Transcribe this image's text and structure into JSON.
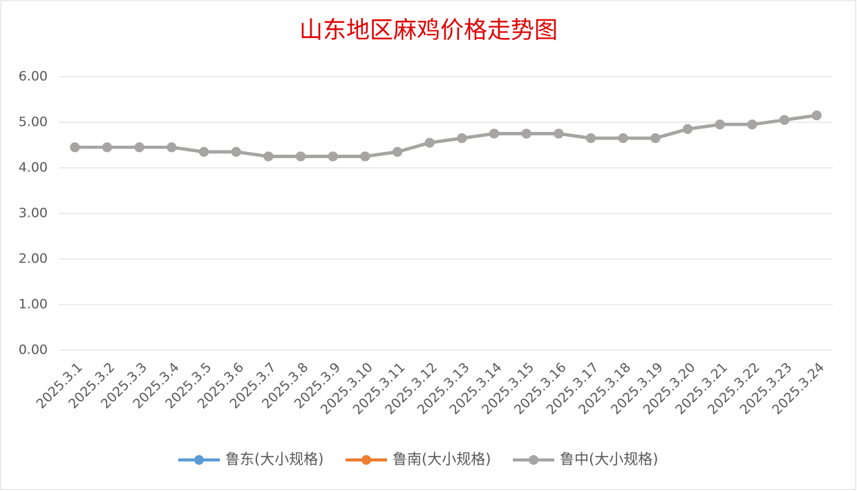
{
  "chart_data": {
    "type": "line",
    "title": "山东地区麻鸡价格走势图",
    "categories": [
      "2025.3.1",
      "2025.3.2",
      "2025.3.3",
      "2025.3.4",
      "2025.3.5",
      "2025.3.6",
      "2025.3.7",
      "2025.3.8",
      "2025.3.9",
      "2025.3.10",
      "2025.3.11",
      "2025.3.12",
      "2025.3.13",
      "2025.3.14",
      "2025.3.15",
      "2025.3.16",
      "2025.3.17",
      "2025.3.18",
      "2025.3.19",
      "2025.3.20",
      "2025.3.21",
      "2025.3.22",
      "2025.3.23",
      "2025.3.24"
    ],
    "series": [
      {
        "name": "鲁东(大小规格)",
        "color": "#5b9bd5",
        "values": [
          4.45,
          4.45,
          4.45,
          4.45,
          4.35,
          4.35,
          4.25,
          4.25,
          4.25,
          4.25,
          4.35,
          4.55,
          4.65,
          4.75,
          4.75,
          4.75,
          4.65,
          4.65,
          4.65,
          4.85,
          4.95,
          4.95,
          5.05,
          5.15
        ]
      },
      {
        "name": "鲁南(大小规格)",
        "color": "#ed7d31",
        "values": [
          4.45,
          4.45,
          4.45,
          4.45,
          4.35,
          4.35,
          4.25,
          4.25,
          4.25,
          4.25,
          4.35,
          4.55,
          4.65,
          4.75,
          4.75,
          4.75,
          4.65,
          4.65,
          4.65,
          4.85,
          4.95,
          4.95,
          5.05,
          5.15
        ]
      },
      {
        "name": "鲁中(大小规格)",
        "color": "#a5a5a5",
        "values": [
          4.45,
          4.45,
          4.45,
          4.45,
          4.35,
          4.35,
          4.25,
          4.25,
          4.25,
          4.25,
          4.35,
          4.55,
          4.65,
          4.75,
          4.75,
          4.75,
          4.65,
          4.65,
          4.65,
          4.85,
          4.95,
          4.95,
          5.05,
          5.15
        ]
      }
    ],
    "ylim": [
      0,
      6
    ],
    "yticks": [
      {
        "value": 0,
        "label": "0.00"
      },
      {
        "value": 1,
        "label": "1.00"
      },
      {
        "value": 2,
        "label": "2.00"
      },
      {
        "value": 3,
        "label": "3.00"
      },
      {
        "value": 4,
        "label": "4.00"
      },
      {
        "value": 5,
        "label": "5.00"
      },
      {
        "value": 6,
        "label": "6.00"
      }
    ],
    "grid": true,
    "legend": "bottom"
  }
}
